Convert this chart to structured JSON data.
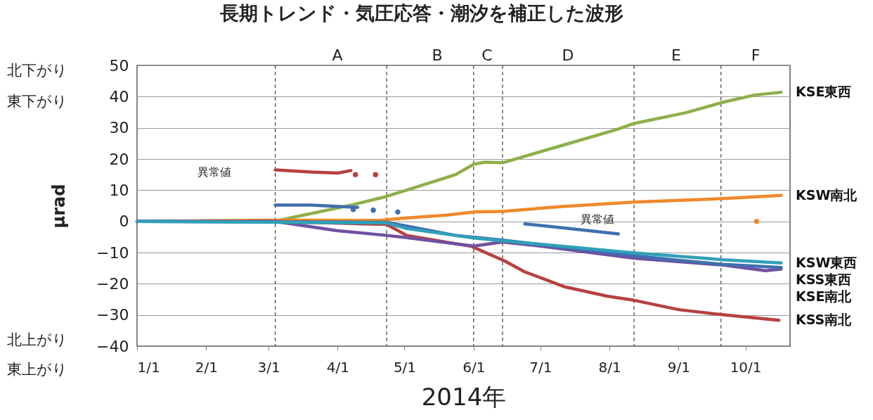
{
  "chart_data": {
    "type": "line",
    "title": "長期トレンド・気圧応答・潮汐を補正した波形",
    "xlabel": "2014年",
    "ylabel": "μrad",
    "xlim": [
      "2014-01-01",
      "2014-10-21"
    ],
    "xticks": [
      {
        "value": "2014-01-01",
        "label": "1/1"
      },
      {
        "value": "2014-02-01",
        "label": "2/1"
      },
      {
        "value": "2014-03-01",
        "label": "3/1"
      },
      {
        "value": "2014-04-01",
        "label": "4/1"
      },
      {
        "value": "2014-05-01",
        "label": "5/1"
      },
      {
        "value": "2014-06-01",
        "label": "6/1"
      },
      {
        "value": "2014-07-01",
        "label": "7/1"
      },
      {
        "value": "2014-08-01",
        "label": "8/1"
      },
      {
        "value": "2014-09-01",
        "label": "9/1"
      },
      {
        "value": "2014-10-01",
        "label": "10/1"
      }
    ],
    "ylim": [
      -40,
      50
    ],
    "yticks": [
      -40,
      -30,
      -20,
      -10,
      0,
      10,
      20,
      30,
      40,
      50
    ],
    "grid": "y",
    "legend": false,
    "ref_lines": [
      {
        "axis": "x",
        "value": "2014-03-04",
        "color": "#404040",
        "line_style": "dashed"
      },
      {
        "axis": "x",
        "value": "2014-04-23",
        "color": "#404040",
        "line_style": "dashed"
      },
      {
        "axis": "x",
        "value": "2014-06-01",
        "color": "#404040",
        "line_style": "dashed"
      },
      {
        "axis": "x",
        "value": "2014-06-14",
        "color": "#404040",
        "line_style": "dashed"
      },
      {
        "axis": "x",
        "value": "2014-08-12",
        "color": "#404040",
        "line_style": "dashed"
      },
      {
        "axis": "x",
        "value": "2014-09-20",
        "color": "#404040",
        "line_style": "dashed"
      }
    ],
    "annotations": [
      "北下がり",
      "東下がり",
      "北上がり",
      "東上がり",
      "異常値",
      "異常値",
      "A",
      "B",
      "C",
      "D",
      "E",
      "F"
    ],
    "series": [
      {
        "name": "KSE東西",
        "color": "#8db04a",
        "x": [
          "2014-01-01",
          "2014-03-04",
          "2014-03-10",
          "2014-04-07",
          "2014-04-23",
          "2014-05-24",
          "2014-06-01",
          "2014-06-06",
          "2014-06-14",
          "2014-07-11",
          "2014-08-05",
          "2014-08-12",
          "2014-09-04",
          "2014-09-21",
          "2014-10-05",
          "2014-10-17"
        ],
        "values": [
          0,
          0,
          1,
          5.2,
          8,
          15,
          18.3,
          19,
          18.8,
          24.4,
          29.6,
          31.4,
          34.8,
          38.2,
          40.5,
          41.4
        ]
      },
      {
        "name": "KSW南北",
        "color": "#f0882a",
        "x": [
          "2014-01-01",
          "2014-02-01",
          "2014-03-04",
          "2014-04-20",
          "2014-04-30",
          "2014-05-20",
          "2014-06-01",
          "2014-06-14",
          "2014-07-11",
          "2014-08-12",
          "2014-09-21",
          "2014-10-17"
        ],
        "values": [
          0,
          0.2,
          0.4,
          0.3,
          1,
          2,
          3,
          3.2,
          4.8,
          6.2,
          7.3,
          8.3
        ]
      },
      {
        "name": "KSS南北",
        "color": "#b84040",
        "x": [
          "2014-01-01",
          "2014-03-04",
          "2014-04-23",
          "2014-05-02",
          "2014-05-31",
          "2014-06-15",
          "2014-06-24",
          "2014-07-12",
          "2014-07-31",
          "2014-08-12",
          "2014-09-01",
          "2014-09-23",
          "2014-10-16"
        ],
        "values": [
          0,
          0,
          -1,
          -4.5,
          -8,
          -12.7,
          -16.2,
          -21,
          -24,
          -25.3,
          -28.3,
          -30.1,
          -31.7
        ]
      },
      {
        "color": "#b84040",
        "x": [
          "2014-03-04",
          "2014-03-20",
          "2014-04-01",
          "2014-04-07"
        ],
        "values": [
          16.5,
          15.8,
          15.5,
          16.3
        ]
      },
      {
        "type": "scatter",
        "color": "#b84040",
        "x": [
          "2014-04-09",
          "2014-04-18"
        ],
        "values": [
          15,
          15
        ]
      },
      {
        "name": "KSE南北",
        "color": "#7050a0",
        "x": [
          "2014-01-01",
          "2014-03-04",
          "2014-04-01",
          "2014-04-23",
          "2014-05-02",
          "2014-06-01",
          "2014-06-14",
          "2014-07-01",
          "2014-08-12",
          "2014-09-21",
          "2014-10-10",
          "2014-10-17"
        ],
        "values": [
          0,
          0,
          -3,
          -4.5,
          -5.2,
          -7.9,
          -6.6,
          -7.9,
          -11.8,
          -14,
          -15.8,
          -15.3
        ]
      },
      {
        "name": "KSS東西",
        "color": "#3f6faf",
        "x": [
          "2014-01-01",
          "2014-04-23",
          "2014-05-24",
          "2014-06-14",
          "2014-08-12",
          "2014-09-01",
          "2014-09-21",
          "2014-10-17"
        ],
        "values": [
          0,
          -0.3,
          -4.5,
          -6,
          -11,
          -12.5,
          -13.8,
          -14.8
        ]
      },
      {
        "color": "#3f6faf",
        "x": [
          "2014-03-04",
          "2014-03-20",
          "2014-04-10"
        ],
        "values": [
          5.2,
          5.2,
          4.5
        ]
      },
      {
        "type": "scatter",
        "color": "#3f6faf",
        "x": [
          "2014-04-08",
          "2014-04-17",
          "2014-04-28"
        ],
        "values": [
          3.8,
          3.6,
          3
        ]
      },
      {
        "color": "#3f6faf",
        "x": [
          "2014-06-24",
          "2014-07-10",
          "2014-08-05"
        ],
        "values": [
          -0.8,
          -2,
          -4
        ]
      },
      {
        "name": "KSW東西",
        "color": "#30a0b8",
        "x": [
          "2014-01-01",
          "2014-04-23",
          "2014-05-02",
          "2014-06-01",
          "2014-06-14",
          "2014-08-12",
          "2014-09-21",
          "2014-10-17"
        ],
        "values": [
          0,
          -0.5,
          -2.3,
          -5.3,
          -6.2,
          -10.1,
          -12.3,
          -13.3
        ]
      },
      {
        "type": "scatter",
        "color": "#f0882a",
        "x": [
          "2014-10-06"
        ],
        "values": [
          0
        ]
      }
    ]
  }
}
